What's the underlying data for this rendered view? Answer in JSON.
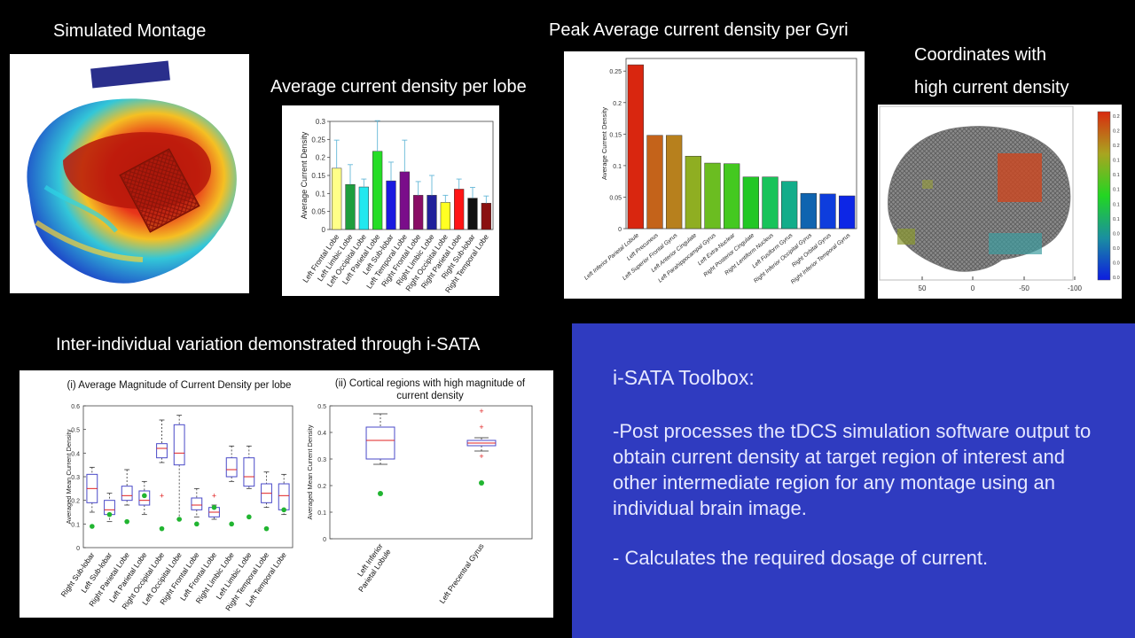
{
  "captions": {
    "montage": "Simulated Montage",
    "lobe": "Average current density per lobe",
    "gyri": "Peak Average current density per Gyri",
    "coords_line1": "Coordinates with",
    "coords_line2": "high current density",
    "variation": "Inter-individual variation demonstrated through i-SATA"
  },
  "info": {
    "title": "i-SATA Toolbox:",
    "point1": "-Post processes the tDCS simulation software output to obtain current density at target region of interest and other intermediate region for any montage using an individual brain image.",
    "point2": "- Calculates the required dosage of current."
  },
  "coords_axis": {
    "ticks": [
      "50",
      "0",
      "-50",
      "-100"
    ],
    "colorbar_ticks": [
      "0.2",
      "0.2",
      "0.2",
      "0.1",
      "0.1",
      "0.1",
      "0.1",
      "0.1",
      "0.0",
      "0.0",
      "0.0",
      "0.0"
    ]
  },
  "chart_data": [
    {
      "type": "bar",
      "ylabel": "Average Current Density",
      "ylim": [
        0,
        0.3
      ],
      "yticks": [
        "0",
        "0.05",
        "0.1",
        "0.15",
        "0.2",
        "0.25",
        "0.3"
      ],
      "categories": [
        "Left Frontal Lobe",
        "Left Limbic Lobe",
        "Left Occipital Lobe",
        "Left Parietal Lobe",
        "Left Sub-lobar",
        "Left Temporal Lobe",
        "Right Frontal Lobe",
        "Right Limbic Lobe",
        "Right Occipital Lobe",
        "Right Parietal Lobe",
        "Right Sub-lobar",
        "Right Temporal Lobe"
      ],
      "values": [
        0.17,
        0.125,
        0.118,
        0.217,
        0.135,
        0.16,
        0.095,
        0.095,
        0.075,
        0.112,
        0.087,
        0.073
      ],
      "errors": [
        0.078,
        0.055,
        0.022,
        0.085,
        0.052,
        0.088,
        0.038,
        0.055,
        0.02,
        0.028,
        0.03,
        0.02
      ],
      "colors": [
        "#ffff88",
        "#1e9e3e",
        "#22e8ef",
        "#25dd25",
        "#1a1adf",
        "#7a0d8a",
        "#8a0d66",
        "#20209a",
        "#ffff22",
        "#ff1515",
        "#111111",
        "#8a1010"
      ]
    },
    {
      "type": "bar",
      "ylabel": "Average Current Density",
      "ylim": [
        0,
        0.27
      ],
      "yticks": [
        "0",
        "0.05",
        "0.1",
        "0.15",
        "0.2",
        "0.25"
      ],
      "categories": [
        "Left Inferior Parietal Lobule",
        "Left Precuneus",
        "Left Superior Frontal Gyrus",
        "Left Anterior Cingulate",
        "Left Parahippocampal Gyrus",
        "Left Extra-Nuclear",
        "Right Posterior Cingulate",
        "Right Lentiform Nucleus",
        "Left Fusiform Gyrus",
        "Right Inferior Occipital Gyrus",
        "Right Orbital Gyrus",
        "Right Inferior Temporal Gyrus"
      ],
      "values": [
        0.26,
        0.148,
        0.148,
        0.115,
        0.104,
        0.103,
        0.082,
        0.082,
        0.075,
        0.056,
        0.055,
        0.052
      ],
      "colors": [
        "#d9260f",
        "#c4631a",
        "#b7801d",
        "#8fae22",
        "#6bbd21",
        "#44c920",
        "#22c725",
        "#19c35a",
        "#13ad8a",
        "#0f64b0",
        "#0e3ddd",
        "#0d26e6"
      ]
    },
    {
      "type": "box",
      "title": "(i) Average Magnitude of Current Density per lobe",
      "ylabel": "Averaged Mean Current Density",
      "ylim": [
        0,
        0.6
      ],
      "yticks": [
        "0",
        "0.1",
        "0.2",
        "0.3",
        "0.4",
        "0.5",
        "0.6"
      ],
      "categories": [
        "Right Sub-lobar",
        "Left Sub-lobar",
        "Right Parietal Lobe",
        "Left Parietal Lobe",
        "Right Occipital Lobe",
        "Left Occipital Lobe",
        "Right Frontal Lobe",
        "Left Frontal Lobe",
        "Right Limbic Lobe",
        "Left Limbic Lobe",
        "Right Temporal Lobe",
        "Left Temporal Lobe"
      ],
      "boxes": [
        {
          "min": 0.15,
          "q1": 0.19,
          "median": 0.25,
          "q3": 0.31,
          "max": 0.34,
          "outliers": [],
          "marker": 0.09
        },
        {
          "min": 0.11,
          "q1": 0.14,
          "median": 0.16,
          "q3": 0.2,
          "max": 0.23,
          "outliers": [],
          "marker": 0.14
        },
        {
          "min": 0.18,
          "q1": 0.2,
          "median": 0.22,
          "q3": 0.26,
          "max": 0.33,
          "outliers": [],
          "marker": 0.11
        },
        {
          "min": 0.14,
          "q1": 0.18,
          "median": 0.2,
          "q3": 0.24,
          "max": 0.28,
          "outliers": [],
          "marker": 0.22
        },
        {
          "min": 0.36,
          "q1": 0.38,
          "median": 0.42,
          "q3": 0.44,
          "max": 0.54,
          "outliers": [
            0.22
          ],
          "marker": 0.08
        },
        {
          "min": 0.12,
          "q1": 0.35,
          "median": 0.4,
          "q3": 0.52,
          "max": 0.56,
          "outliers": [],
          "marker": 0.12
        },
        {
          "min": 0.13,
          "q1": 0.16,
          "median": 0.18,
          "q3": 0.21,
          "max": 0.25,
          "outliers": [],
          "marker": 0.1
        },
        {
          "min": 0.12,
          "q1": 0.13,
          "median": 0.15,
          "q3": 0.17,
          "max": 0.18,
          "outliers": [
            0.22
          ],
          "marker": 0.17
        },
        {
          "min": 0.28,
          "q1": 0.3,
          "median": 0.33,
          "q3": 0.38,
          "max": 0.43,
          "outliers": [],
          "marker": 0.1
        },
        {
          "min": 0.25,
          "q1": 0.26,
          "median": 0.3,
          "q3": 0.38,
          "max": 0.43,
          "outliers": [],
          "marker": 0.13
        },
        {
          "min": 0.17,
          "q1": 0.19,
          "median": 0.23,
          "q3": 0.27,
          "max": 0.32,
          "outliers": [],
          "marker": 0.08
        },
        {
          "min": 0.14,
          "q1": 0.16,
          "median": 0.22,
          "q3": 0.27,
          "max": 0.31,
          "outliers": [],
          "marker": 0.16
        }
      ]
    },
    {
      "type": "box",
      "title": "(ii) Cortical regions with high magnitude of current density",
      "ylabel": "Averaged Mean Current Density",
      "ylim": [
        0,
        0.5
      ],
      "yticks": [
        "0",
        "0.1",
        "0.2",
        "0.3",
        "0.4",
        "0.5"
      ],
      "categories": [
        "Left Inferior Parietal Lobule",
        "Left Precentral Gyrus"
      ],
      "boxes": [
        {
          "min": 0.28,
          "q1": 0.3,
          "median": 0.37,
          "q3": 0.42,
          "max": 0.47,
          "outliers": [],
          "marker": 0.17
        },
        {
          "min": 0.33,
          "q1": 0.35,
          "median": 0.36,
          "q3": 0.37,
          "max": 0.38,
          "outliers": [
            0.48,
            0.42,
            0.31
          ],
          "marker": 0.21
        }
      ]
    }
  ]
}
